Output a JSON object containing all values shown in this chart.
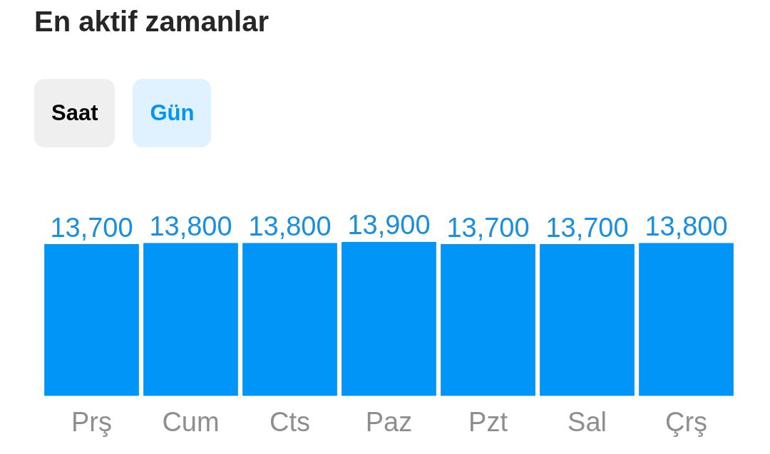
{
  "chart_data": {
    "type": "bar",
    "title": "En aktif zamanlar",
    "annotations": [
      "Saat",
      "Gün"
    ],
    "categories": [
      "Prş",
      "Cum",
      "Cts",
      "Paz",
      "Pzt",
      "Sal",
      "Çrş"
    ],
    "values": [
      13700,
      13800,
      13800,
      13900,
      13700,
      13700,
      13800
    ],
    "value_labels": [
      "13,700",
      "13,800",
      "13,800",
      "13,900",
      "13,700",
      "13,700",
      "13,800"
    ],
    "color": "#0095f6",
    "relative": false,
    "grid": false,
    "legend": false
  }
}
